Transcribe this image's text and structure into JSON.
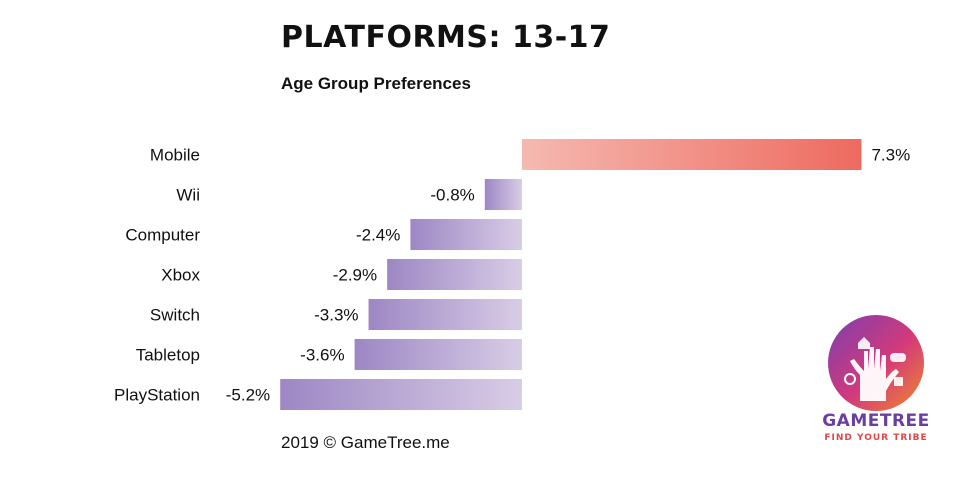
{
  "title": "PLATFORMS: 13-17",
  "subtitle": "Age Group Preferences",
  "footer": "2019 © GameTree.me",
  "logo": {
    "name": "GAMETREE",
    "tagline": "FIND YOUR TRIBE"
  },
  "colors": {
    "positive_start": "#f5b9b1",
    "positive_end": "#ee6a5f",
    "negative_start": "#9d87c4",
    "negative_end": "#d8cde6"
  },
  "chart_data": {
    "type": "bar",
    "orientation": "horizontal",
    "categories": [
      "Mobile",
      "Wii",
      "Computer",
      "Xbox",
      "Switch",
      "Tabletop",
      "PlayStation"
    ],
    "values": [
      7.3,
      -0.8,
      -2.4,
      -2.9,
      -3.3,
      -3.6,
      -5.2
    ],
    "value_labels": [
      "7.3%",
      "-0.8%",
      "-2.4%",
      "-2.9%",
      "-3.3%",
      "-3.6%",
      "-5.2%"
    ],
    "title": "PLATFORMS: 13-17",
    "subtitle": "Age Group Preferences",
    "xlim": [
      -5.2,
      7.3
    ],
    "grid": false,
    "legend": "none"
  }
}
